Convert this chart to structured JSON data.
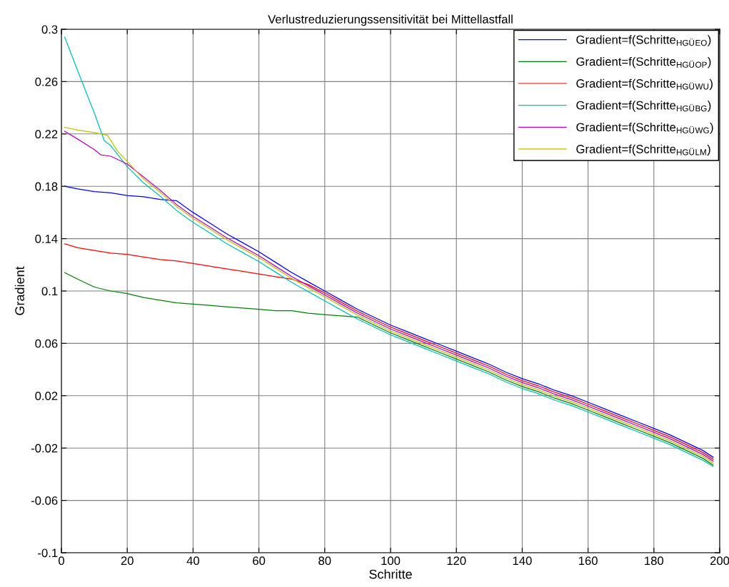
{
  "chart_data": {
    "type": "line",
    "title": "Verlustreduzierungssensitivität bei Mittellastfall",
    "xlabel": "Schritte",
    "ylabel": "Gradient",
    "xlim": [
      0,
      200
    ],
    "xticks": [
      0,
      20,
      40,
      60,
      80,
      100,
      120,
      140,
      160,
      180,
      200
    ],
    "ylim": [
      -0.1,
      0.3
    ],
    "yticks": [
      -0.1,
      -0.06,
      -0.02,
      0.02,
      0.06,
      0.1,
      0.14,
      0.18,
      0.22,
      0.26,
      0.3
    ],
    "grid": true,
    "legend": "top right",
    "series": [
      {
        "name": "Gradient=f(Schritte$_{HGÜ}$$_{EO}$)",
        "color": "#0000ff",
        "x": [
          1,
          5,
          10,
          15,
          20,
          25,
          30,
          35,
          40,
          45,
          50,
          55,
          60,
          65,
          70,
          75,
          80,
          85,
          90,
          95,
          100,
          105,
          110,
          115,
          120,
          125,
          130,
          135,
          140,
          145,
          150,
          155,
          160,
          165,
          170,
          175,
          180,
          185,
          190,
          195,
          198
        ],
        "values": [
          0.18,
          0.178,
          0.176,
          0.175,
          0.173,
          0.172,
          0.17,
          0.169,
          0.16,
          0.152,
          0.144,
          0.137,
          0.13,
          0.122,
          0.114,
          0.107,
          0.1,
          0.093,
          0.086,
          0.08,
          0.074,
          0.069,
          0.064,
          0.059,
          0.054,
          0.049,
          0.044,
          0.038,
          0.033,
          0.029,
          0.024,
          0.02,
          0.015,
          0.01,
          0.005,
          0.0,
          -0.005,
          -0.01,
          -0.016,
          -0.022,
          -0.027
        ]
      },
      {
        "name": "Gradient=f(Schritte$_{HGÜ}$$_{OP}$)",
        "color": "#008000",
        "x": [
          1,
          5,
          10,
          15,
          20,
          25,
          30,
          35,
          40,
          45,
          50,
          55,
          60,
          65,
          70,
          75,
          80,
          85,
          90,
          95,
          100,
          105,
          110,
          115,
          120,
          125,
          130,
          135,
          140,
          145,
          150,
          155,
          160,
          165,
          170,
          175,
          180,
          185,
          190,
          195,
          198
        ],
        "values": [
          0.114,
          0.109,
          0.103,
          0.1,
          0.098,
          0.095,
          0.093,
          0.091,
          0.09,
          0.089,
          0.088,
          0.087,
          0.086,
          0.085,
          0.085,
          0.083,
          0.082,
          0.081,
          0.08,
          0.074,
          0.068,
          0.063,
          0.058,
          0.053,
          0.048,
          0.043,
          0.038,
          0.032,
          0.027,
          0.023,
          0.018,
          0.014,
          0.009,
          0.004,
          -0.001,
          -0.006,
          -0.011,
          -0.016,
          -0.022,
          -0.028,
          -0.033
        ]
      },
      {
        "name": "Gradient=f(Schritte$_{HGÜ}$$_{WU}$)",
        "color": "#ff0000",
        "x": [
          1,
          5,
          10,
          15,
          20,
          25,
          30,
          35,
          40,
          45,
          50,
          55,
          60,
          65,
          70,
          75,
          80,
          85,
          90,
          95,
          100,
          105,
          110,
          115,
          120,
          125,
          130,
          135,
          140,
          145,
          150,
          155,
          160,
          165,
          170,
          175,
          180,
          185,
          190,
          195,
          198
        ],
        "values": [
          0.136,
          0.133,
          0.131,
          0.129,
          0.128,
          0.126,
          0.124,
          0.123,
          0.121,
          0.119,
          0.117,
          0.115,
          0.113,
          0.111,
          0.109,
          0.105,
          0.0985,
          0.0915,
          0.0845,
          0.0785,
          0.0725,
          0.0675,
          0.0625,
          0.0575,
          0.0525,
          0.0475,
          0.0425,
          0.0365,
          0.0315,
          0.0275,
          0.0225,
          0.0185,
          0.0135,
          0.0085,
          0.0035,
          -0.0015,
          -0.0065,
          -0.0115,
          -0.0175,
          -0.0235,
          -0.0285
        ]
      },
      {
        "name": "Gradient=f(Schritte$_{HGÜ}$$_{BG}$)",
        "color": "#00bfbf",
        "x": [
          1,
          5,
          10,
          13,
          15,
          20,
          25,
          30,
          35,
          40,
          45,
          50,
          55,
          60,
          65,
          70,
          75,
          80,
          85,
          90,
          95,
          100,
          105,
          110,
          115,
          120,
          125,
          130,
          135,
          140,
          145,
          150,
          155,
          160,
          165,
          170,
          175,
          180,
          185,
          190,
          195,
          198
        ],
        "values": [
          0.294,
          0.268,
          0.236,
          0.215,
          0.211,
          0.195,
          0.1825,
          0.1725,
          0.1615,
          0.1525,
          0.1445,
          0.1365,
          0.1295,
          0.1225,
          0.1145,
          0.1065,
          0.0995,
          0.0925,
          0.0855,
          0.0785,
          0.0725,
          0.0665,
          0.0615,
          0.0565,
          0.0515,
          0.0465,
          0.0415,
          0.0365,
          0.0305,
          0.0255,
          0.0215,
          0.0165,
          0.0125,
          0.0075,
          0.0025,
          -0.0025,
          -0.0075,
          -0.0125,
          -0.0175,
          -0.0235,
          -0.0295,
          -0.034
        ]
      },
      {
        "name": "Gradient=f(Schritte$_{HGÜ}$$_{WG}$)",
        "color": "#bf00bf",
        "x": [
          1,
          5,
          10,
          12,
          15,
          20,
          25,
          30,
          35,
          40,
          45,
          50,
          55,
          60,
          65,
          70,
          75,
          80,
          85,
          90,
          95,
          100,
          105,
          110,
          115,
          120,
          125,
          130,
          135,
          140,
          145,
          150,
          155,
          160,
          165,
          170,
          175,
          180,
          185,
          190,
          195,
          198
        ],
        "values": [
          0.222,
          0.216,
          0.208,
          0.204,
          0.203,
          0.197,
          0.187,
          0.177,
          0.166,
          0.157,
          0.149,
          0.141,
          0.134,
          0.127,
          0.119,
          0.111,
          0.104,
          0.097,
          0.09,
          0.083,
          0.077,
          0.071,
          0.066,
          0.061,
          0.056,
          0.051,
          0.046,
          0.041,
          0.035,
          0.03,
          0.026,
          0.021,
          0.017,
          0.012,
          0.007,
          0.002,
          -0.003,
          -0.008,
          -0.013,
          -0.019,
          -0.025,
          -0.03
        ]
      },
      {
        "name": "Gradient=f(Schritte$_{HGÜ}$$_{LM}$)",
        "color": "#bfbf00",
        "x": [
          1,
          5,
          10,
          14,
          17,
          20,
          25,
          30,
          35,
          40,
          45,
          50,
          55,
          60,
          65,
          70,
          75,
          80,
          85,
          90,
          95,
          100,
          105,
          110,
          115,
          120,
          125,
          130,
          135,
          140,
          145,
          150,
          155,
          160,
          165,
          170,
          175,
          180,
          185,
          190,
          195,
          198
        ],
        "values": [
          0.225,
          0.223,
          0.221,
          0.219,
          0.207,
          0.199,
          0.1855,
          0.1755,
          0.1645,
          0.1555,
          0.1475,
          0.1395,
          0.1325,
          0.1255,
          0.1175,
          0.1095,
          0.1025,
          0.0955,
          0.0885,
          0.0815,
          0.0755,
          0.0695,
          0.0645,
          0.0595,
          0.0545,
          0.0495,
          0.0445,
          0.0395,
          0.0335,
          0.0285,
          0.0245,
          0.0195,
          0.0155,
          0.0105,
          0.0055,
          0.0005,
          -0.0045,
          -0.0095,
          -0.0145,
          -0.0205,
          -0.0265,
          -0.0315
        ]
      }
    ]
  }
}
